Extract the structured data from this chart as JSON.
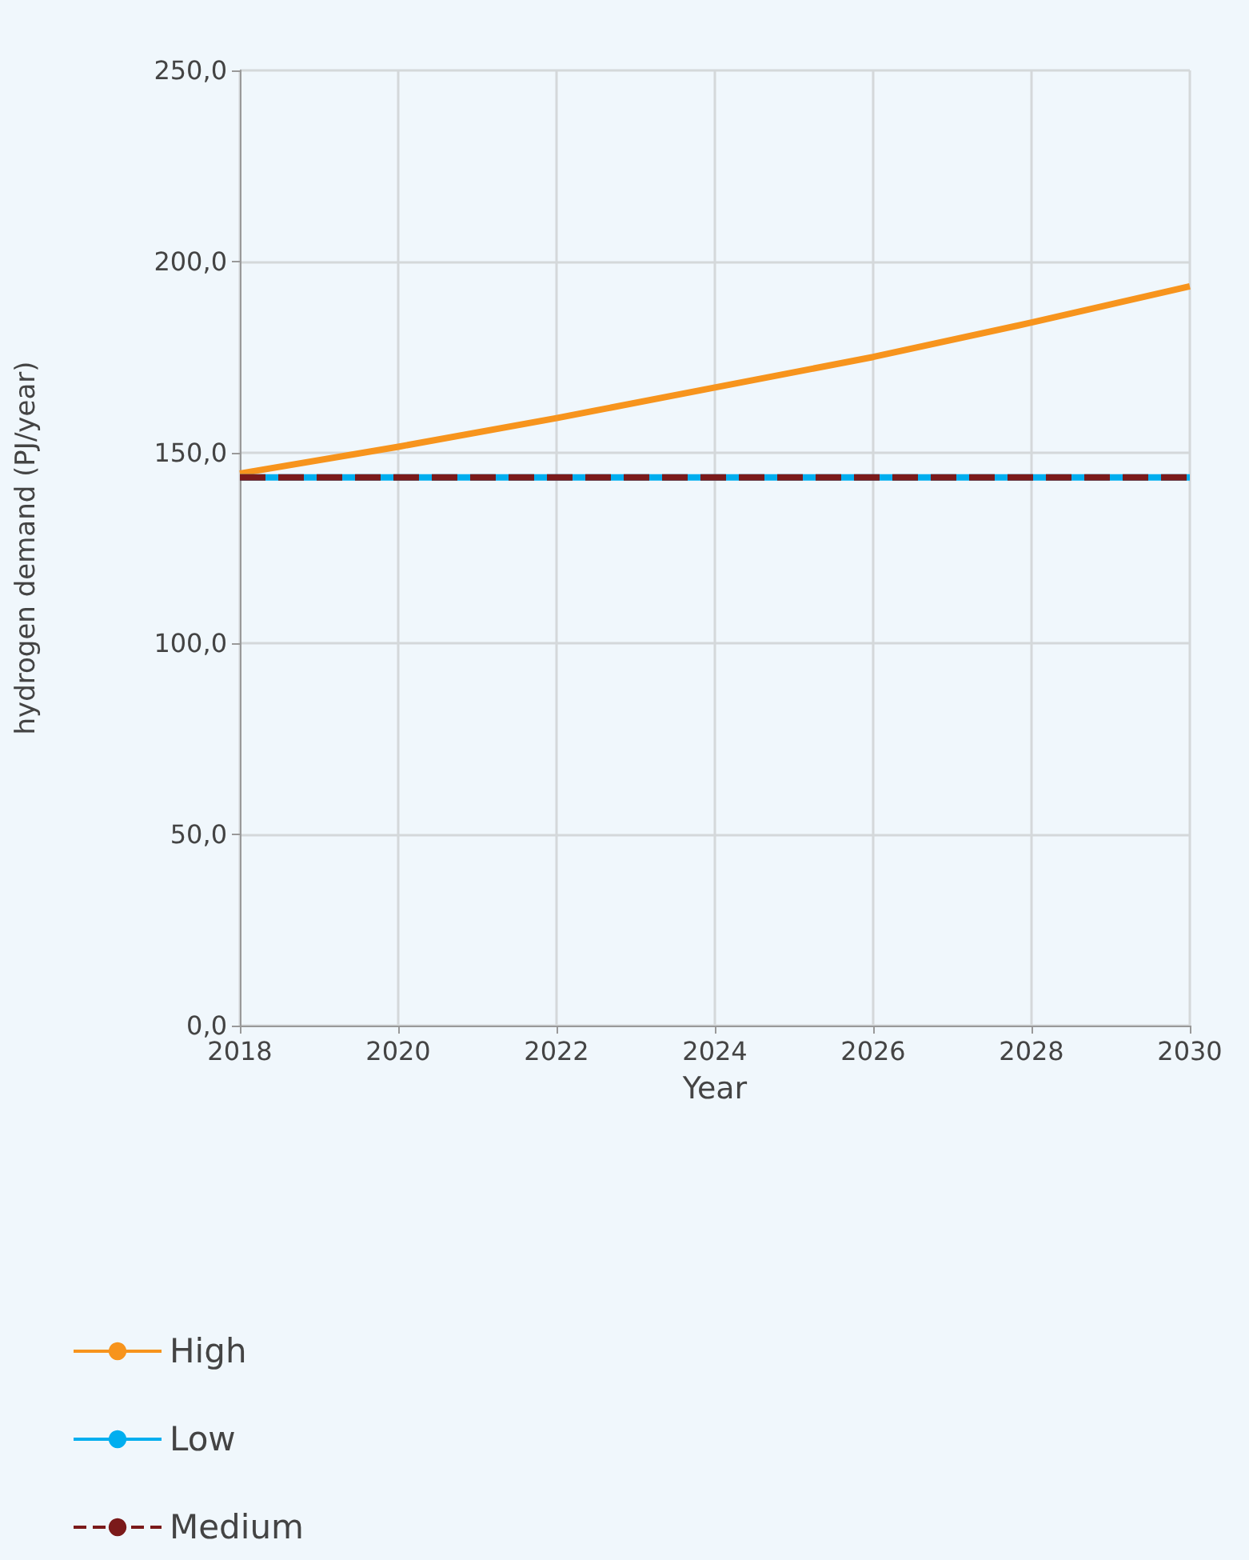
{
  "chart_data": {
    "type": "line",
    "xlabel": "Year",
    "ylabel": "hydrogen demand (PJ/year)",
    "x": [
      2018,
      2020,
      2022,
      2024,
      2026,
      2028,
      2030
    ],
    "series": [
      {
        "name": "High",
        "color": "#f7941d",
        "values": [
          144.5,
          151.5,
          159,
          167,
          175,
          184,
          193.5
        ]
      },
      {
        "name": "Low",
        "color": "#00aeef",
        "values": [
          143.5,
          143.5,
          143.5,
          143.5,
          143.5,
          143.5,
          143.5
        ]
      },
      {
        "name": "Medium",
        "color": "#7b1a1a",
        "values": [
          143.5,
          143.5,
          143.5,
          143.5,
          143.5,
          143.5,
          143.5
        ],
        "line_style": "dashed"
      }
    ],
    "xlim": [
      2018,
      2030
    ],
    "xticks": [
      2018,
      2020,
      2022,
      2024,
      2026,
      2028,
      2030
    ],
    "ylim": [
      0,
      250
    ],
    "yticks": [
      {
        "value": 0,
        "label": "0,0"
      },
      {
        "value": 50,
        "label": "50,0"
      },
      {
        "value": 100,
        "label": "100,0"
      },
      {
        "value": 150,
        "label": "150,0"
      },
      {
        "value": 200,
        "label": "200,0"
      },
      {
        "value": 250,
        "label": "250,0"
      }
    ],
    "grid": true,
    "legend": "bottom left",
    "marker": "none",
    "line_style": "solid"
  }
}
